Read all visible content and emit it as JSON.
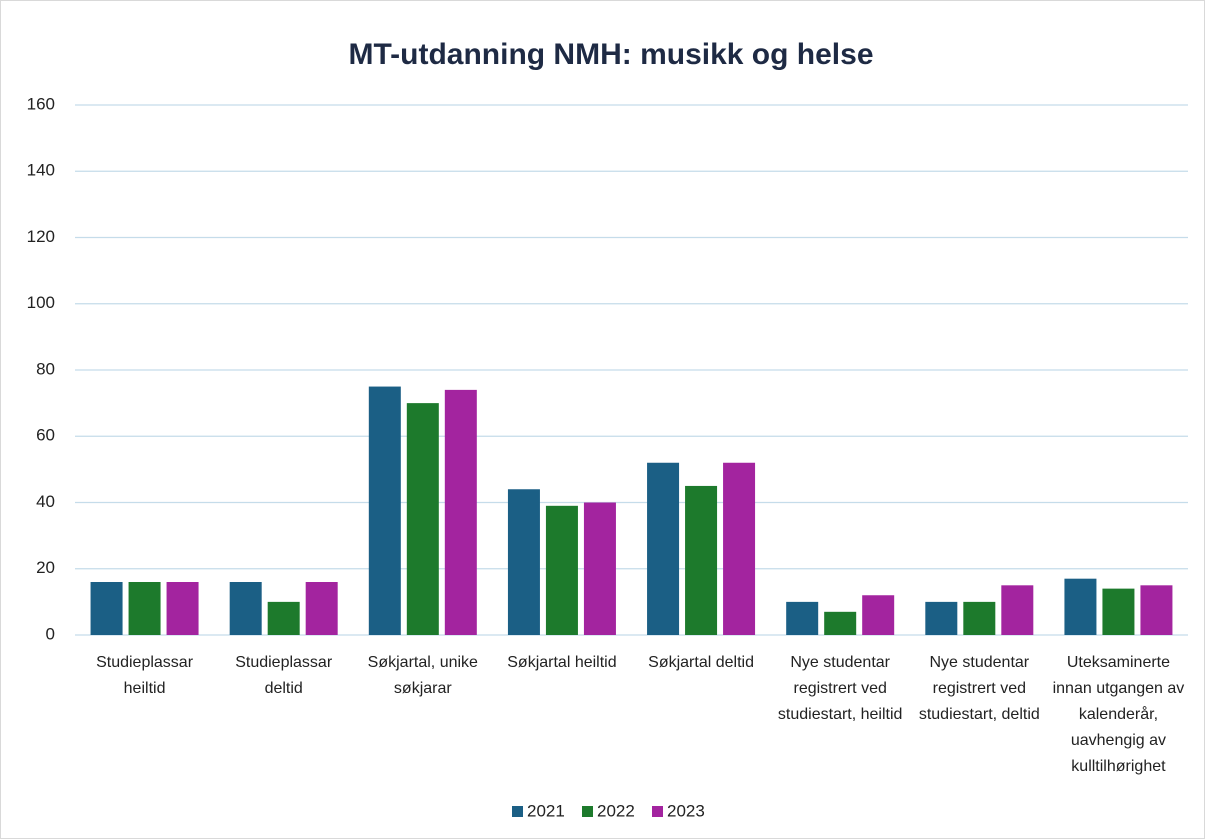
{
  "chart_data": {
    "type": "bar",
    "title": "MT-utdanning NMH: musikk og helse",
    "categories": [
      "Studieplassar heiltid",
      "Studieplassar deltid",
      "Søkjartal, unike søkjarar",
      "Søkjartal heiltid",
      "Søkjartal deltid",
      "Nye studentar registrert ved studiestart, heiltid",
      "Nye studentar registrert ved studiestart, deltid",
      "Uteksaminerte innan utgangen av kalenderår, uavhengig av kulltilhørighet"
    ],
    "series": [
      {
        "name": "2021",
        "color": "#1b5f85",
        "values": [
          16,
          16,
          75,
          44,
          52,
          10,
          10,
          17
        ]
      },
      {
        "name": "2022",
        "color": "#1d7a2c",
        "values": [
          16,
          10,
          70,
          39,
          45,
          7,
          10,
          14
        ]
      },
      {
        "name": "2023",
        "color": "#a3249f",
        "values": [
          16,
          16,
          74,
          40,
          52,
          12,
          15,
          15
        ]
      }
    ],
    "ylim": [
      0,
      160
    ],
    "yticks": [
      0,
      20,
      40,
      60,
      80,
      100,
      120,
      140,
      160
    ],
    "grid": true,
    "legend": "bottom"
  }
}
